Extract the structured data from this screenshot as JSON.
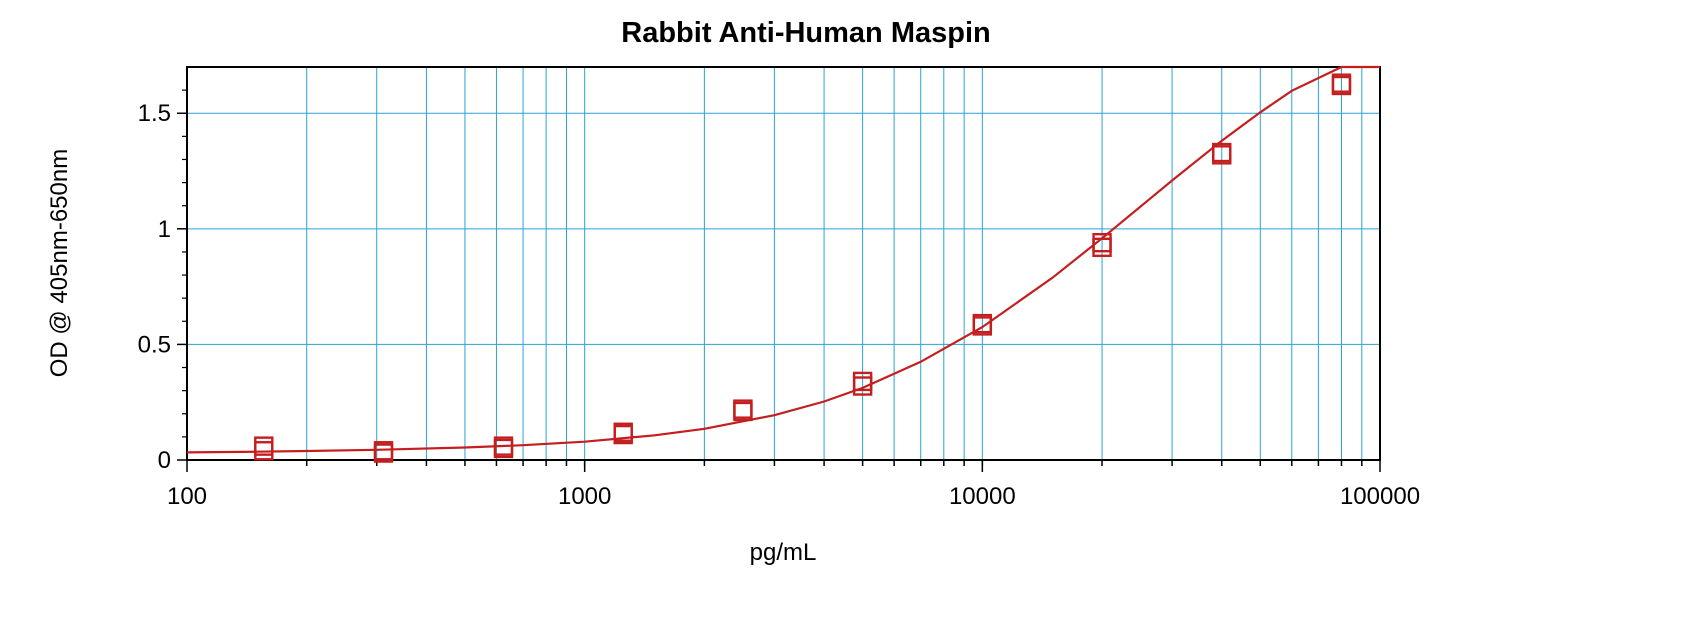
{
  "chart_data": {
    "type": "scatter",
    "title": "Rabbit Anti-Human Maspin",
    "xlabel": "pg/mL",
    "ylabel": "OD @ 405nm-650nm",
    "x_scale": "log",
    "xlim": [
      100,
      100000
    ],
    "ylim": [
      0,
      1.7
    ],
    "x_ticks": [
      100,
      1000,
      10000,
      100000
    ],
    "x_tick_labels": [
      "100",
      "1000",
      "10000",
      "100000"
    ],
    "y_ticks": [
      0,
      0.5,
      1,
      1.5
    ],
    "y_tick_labels": [
      "0",
      "0.5",
      "1",
      "1.5"
    ],
    "grid": true,
    "colors": {
      "grid": "#29a3d6",
      "series": "#c41e1e",
      "axis": "#000000"
    },
    "series": [
      {
        "marker": "square",
        "x": [
          156,
          156,
          312,
          312,
          625,
          625,
          1250,
          1250,
          2500,
          2500,
          5000,
          5000,
          10000,
          10000,
          20000,
          20000,
          40000,
          40000,
          80000,
          80000
        ],
        "y": [
          0.06,
          0.04,
          0.04,
          0.03,
          0.06,
          0.05,
          0.12,
          0.11,
          0.22,
          0.21,
          0.34,
          0.32,
          0.59,
          0.58,
          0.94,
          0.92,
          1.33,
          1.32,
          1.63,
          1.62
        ]
      }
    ],
    "fit_curve": {
      "type": "4PL",
      "x": [
        100,
        150,
        200,
        300,
        500,
        700,
        1000,
        1500,
        2000,
        3000,
        4000,
        5000,
        7000,
        10000,
        15000,
        20000,
        30000,
        40000,
        50000,
        60000,
        80000,
        100000
      ],
      "y": [
        0.033,
        0.036,
        0.039,
        0.044,
        0.054,
        0.064,
        0.079,
        0.107,
        0.135,
        0.194,
        0.253,
        0.312,
        0.425,
        0.575,
        0.788,
        0.959,
        1.209,
        1.381,
        1.504,
        1.597,
        1.724,
        1.806
      ]
    }
  }
}
